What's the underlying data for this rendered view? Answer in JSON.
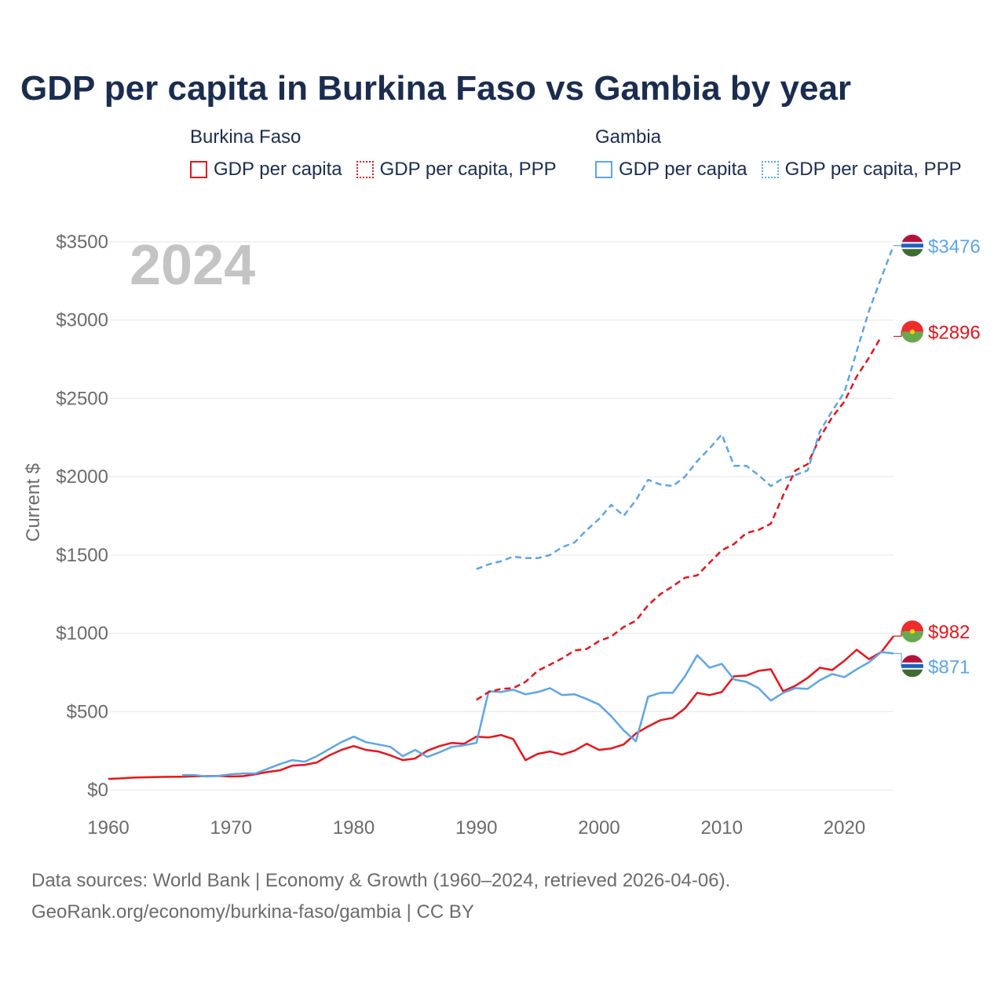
{
  "title": "GDP per capita in Burkina Faso vs Gambia by year",
  "legend": {
    "groups": [
      {
        "country": "Burkina Faso",
        "color": "#e8141b",
        "items": [
          {
            "label": "GDP per capita",
            "style": "solid"
          },
          {
            "label": "GDP per capita, PPP",
            "style": "dotted"
          }
        ]
      },
      {
        "country": "Gambia",
        "color": "#5ea5e6",
        "items": [
          {
            "label": "GDP per capita",
            "style": "solid"
          },
          {
            "label": "GDP per capita, PPP",
            "style": "dotted"
          }
        ]
      }
    ]
  },
  "year_label": "2024",
  "footer": {
    "line1": "Data sources: World Bank | Economy & Growth (1960–2024, retrieved 2026-04-06).",
    "line2": "GeoRank.org/economy/burkina-faso/gambia | CC BY"
  },
  "colors": {
    "burkina": "#e8141b",
    "gambia": "#5ea5e6",
    "title": "#1b2d4f",
    "axis_text": "#6b6b6b",
    "grid": "#e6e6e6",
    "year_watermark": "#c4c4c4"
  },
  "chart_data": {
    "type": "line",
    "ylabel": "Current $",
    "xlabel": "",
    "xlim": [
      1960,
      2024
    ],
    "ylim": [
      0,
      3500
    ],
    "x_ticks": [
      1960,
      1970,
      1980,
      1990,
      2000,
      2010,
      2020
    ],
    "x_tick_labels": [
      "1960",
      "1970",
      "1980",
      "1990",
      "2000",
      "2010",
      "2020"
    ],
    "y_ticks": [
      0,
      500,
      1000,
      1500,
      2000,
      2500,
      3000,
      3500
    ],
    "y_tick_labels": [
      "$0",
      "$500",
      "$1000",
      "$1500",
      "$2000",
      "$2500",
      "$3000",
      "$3500"
    ],
    "grid": true,
    "series": [
      {
        "name": "Burkina Faso GDP per capita",
        "country": "burkina",
        "dash": "solid",
        "start_year": 1960,
        "values": [
          70,
          73,
          78,
          80,
          82,
          83,
          84,
          86,
          88,
          89,
          85,
          88,
          100,
          115,
          125,
          155,
          160,
          175,
          220,
          255,
          280,
          255,
          245,
          220,
          190,
          200,
          250,
          280,
          300,
          295,
          340,
          335,
          350,
          325,
          190,
          230,
          245,
          225,
          250,
          295,
          255,
          265,
          290,
          360,
          405,
          445,
          460,
          520,
          620,
          605,
          625,
          725,
          730,
          760,
          770,
          630,
          665,
          715,
          780,
          765,
          825,
          895,
          835,
          880,
          982
        ]
      },
      {
        "name": "Gambia GDP per capita",
        "country": "gambia",
        "dash": "solid",
        "start_year": 1966,
        "values": [
          95,
          95,
          85,
          90,
          100,
          105,
          105,
          135,
          165,
          190,
          180,
          215,
          260,
          305,
          340,
          305,
          290,
          275,
          215,
          255,
          210,
          240,
          275,
          285,
          300,
          630,
          625,
          640,
          610,
          625,
          650,
          605,
          610,
          580,
          545,
          470,
          380,
          310,
          595,
          620,
          620,
          725,
          860,
          780,
          805,
          705,
          690,
          650,
          570,
          620,
          650,
          645,
          700,
          740,
          720,
          770,
          815,
          880,
          871
        ]
      },
      {
        "name": "Burkina Faso GDP per capita, PPP",
        "country": "burkina",
        "dash": "dashed",
        "start_year": 1990,
        "values": [
          575,
          625,
          645,
          650,
          690,
          760,
          800,
          840,
          890,
          900,
          950,
          980,
          1040,
          1080,
          1180,
          1250,
          1300,
          1355,
          1370,
          1450,
          1530,
          1570,
          1640,
          1660,
          1700,
          1880,
          2040,
          2080,
          2250,
          2380,
          2480,
          2640,
          2760,
          2896
        ]
      },
      {
        "name": "Gambia GDP per capita, PPP",
        "country": "gambia",
        "dash": "dashed",
        "start_year": 1990,
        "values": [
          1410,
          1440,
          1460,
          1490,
          1480,
          1480,
          1500,
          1550,
          1580,
          1660,
          1730,
          1820,
          1750,
          1850,
          1980,
          1950,
          1940,
          2000,
          2100,
          2180,
          2270,
          2070,
          2070,
          2010,
          1940,
          1990,
          2010,
          2040,
          2290,
          2420,
          2540,
          2800,
          3060,
          3270,
          3476
        ]
      }
    ],
    "end_labels": [
      {
        "text": "$3476",
        "country": "gambia",
        "value": 3476,
        "flag": "gambia"
      },
      {
        "text": "$2896",
        "country": "burkina",
        "value": 2896,
        "flag": "burkina"
      },
      {
        "text": "$982",
        "country": "burkina",
        "value": 982,
        "flag": "burkina"
      },
      {
        "text": "$871",
        "country": "gambia",
        "value": 871,
        "flag": "gambia"
      }
    ]
  }
}
